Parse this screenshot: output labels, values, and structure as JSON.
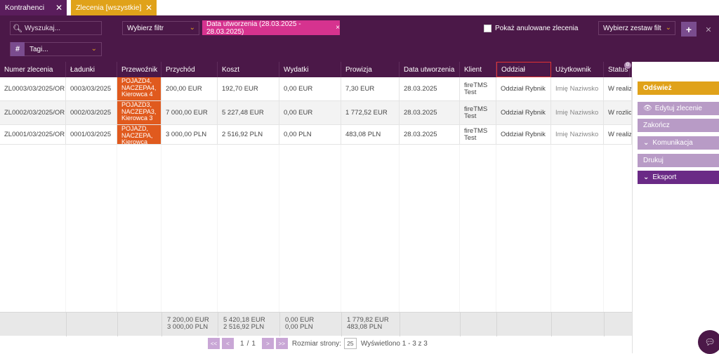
{
  "tabs": [
    {
      "label": "Kontrahenci",
      "close": "✕"
    },
    {
      "label": "Zlecenia [wszystkie]",
      "close": "✕"
    }
  ],
  "toolbar": {
    "search_placeholder": "Wyszukaj...",
    "filter_select": "Wybierz filtr",
    "filter_chip": "Data utworzenia (28.03.2025 - 28.03.2025)",
    "chip_close": "×",
    "show_cancelled": "Pokaż anulowane zlecenia",
    "filter_set": "Wybierz zestaw filt",
    "tags": "Tagi...",
    "add": "+",
    "remove": "✕"
  },
  "columns": [
    "Numer zlecenia",
    "Ładunki",
    "Przewoźnik",
    "Przychód",
    "Koszt",
    "Wydatki",
    "Prowizja",
    "Data utworzenia",
    "Klient",
    "Oddział",
    "Użytkownik",
    "Status",
    "..."
  ],
  "rows": [
    {
      "numer": "ZL0003/03/2025/OR",
      "ladunki": "0003/03/2025",
      "przewoznik": "POJAZD4, NACZEPA4, Kierowca 4",
      "przychod": "200,00 EUR",
      "koszt": "192,70 EUR",
      "wydatki": "0,00 EUR",
      "prowizja": "7,30 EUR",
      "data": "28.03.2025",
      "klient": "fireTMS Test",
      "oddzial": "Oddział Rybnik",
      "uzytkownik": "Imię Naziwsko",
      "status": "W realiz"
    },
    {
      "numer": "ZL0002/03/2025/OR",
      "ladunki": "0002/03/2025",
      "przewoznik": "POJAZD3, NACZEPA3, Kierowca 3",
      "przychod": "7 000,00 EUR",
      "koszt": "5 227,48 EUR",
      "wydatki": "0,00 EUR",
      "prowizja": "1 772,52 EUR",
      "data": "28.03.2025",
      "klient": "fireTMS Test",
      "oddzial": "Oddział Rybnik",
      "uzytkownik": "Imię Naziwsko",
      "status": "W rozlicz"
    },
    {
      "numer": "ZL0001/03/2025/OR",
      "ladunki": "0001/03/2025",
      "przewoznik": "POJAZD, NACZEPA, Kierowca",
      "przychod": "3 000,00 PLN",
      "koszt": "2 516,92 PLN",
      "wydatki": "0,00 PLN",
      "prowizja": "483,08 PLN",
      "data": "28.03.2025",
      "klient": "fireTMS Test",
      "oddzial": "Oddział Rybnik",
      "uzytkownik": "Imię Naziwsko",
      "status": "W realiz"
    }
  ],
  "totals": {
    "przychod": [
      "7 200,00 EUR",
      "3 000,00 PLN"
    ],
    "koszt": [
      "5 420,18 EUR",
      "2 516,92 PLN"
    ],
    "wydatki": [
      "0,00 EUR",
      "0,00 PLN"
    ],
    "prowizja": [
      "1 779,82 EUR",
      "483,08 PLN"
    ]
  },
  "pager": {
    "first": "<<",
    "prev": "<",
    "page": "1",
    "sep": "/",
    "pages": "1",
    "next": ">",
    "last": ">>",
    "size_label": "Rozmiar strony:",
    "size": "25",
    "shown": "Wyświetlono  1 - 3  z  3"
  },
  "actions": {
    "refresh": "Odśwież",
    "edit": "Edytuj zlecenie",
    "finish": "Zakończ",
    "communication": "Komunikacja",
    "print": "Drukuj",
    "export": "Eksport"
  },
  "colors": {
    "header": "#4b1848",
    "accent": "#e0a21a",
    "chip": "#d6338f",
    "carrier": "#e05a1e"
  }
}
